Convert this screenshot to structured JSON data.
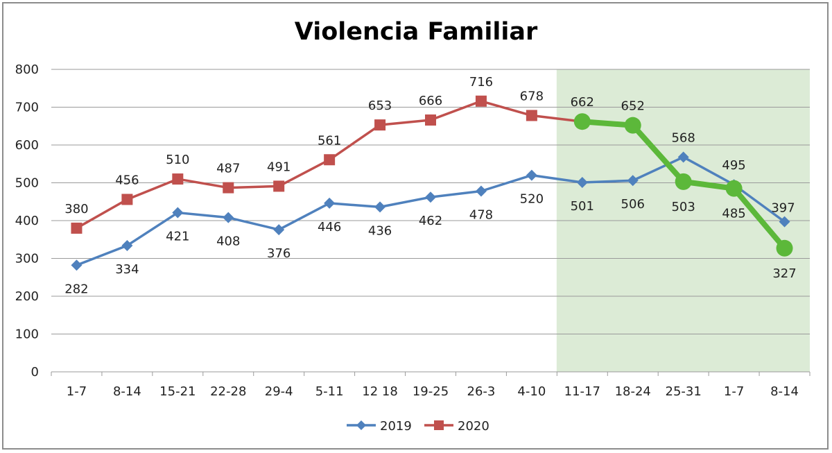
{
  "chart_data": {
    "type": "line",
    "title": "Violencia Familiar",
    "xlabel": "",
    "ylabel": "",
    "categories": [
      "1-7",
      "8-14",
      "15-21",
      "22-28",
      "29-4",
      "5-11",
      "12 18",
      "19-25",
      "26-3",
      "4-10",
      "11-17",
      "18-24",
      "25-31",
      "1-7",
      "8-14"
    ],
    "ylim": [
      0,
      800
    ],
    "yticks": [
      0,
      100,
      200,
      300,
      400,
      500,
      600,
      700,
      800
    ],
    "grid": true,
    "legend_position": "bottom",
    "highlight_region": {
      "from_index": 10,
      "to_index": 14,
      "color": "#dcebd6"
    },
    "series": [
      {
        "name": "2019",
        "color": "#4f81bd",
        "marker": "diamond",
        "values": [
          282,
          334,
          421,
          408,
          376,
          446,
          436,
          462,
          478,
          520,
          501,
          506,
          568,
          495,
          397
        ]
      },
      {
        "name": "2020",
        "color": "#c0504d",
        "marker": "square",
        "values": [
          380,
          456,
          510,
          487,
          491,
          561,
          653,
          666,
          716,
          678,
          662,
          652,
          503,
          485,
          327
        ],
        "highlight_from_index": 10,
        "highlight_color": "#5cb83a"
      }
    ]
  }
}
